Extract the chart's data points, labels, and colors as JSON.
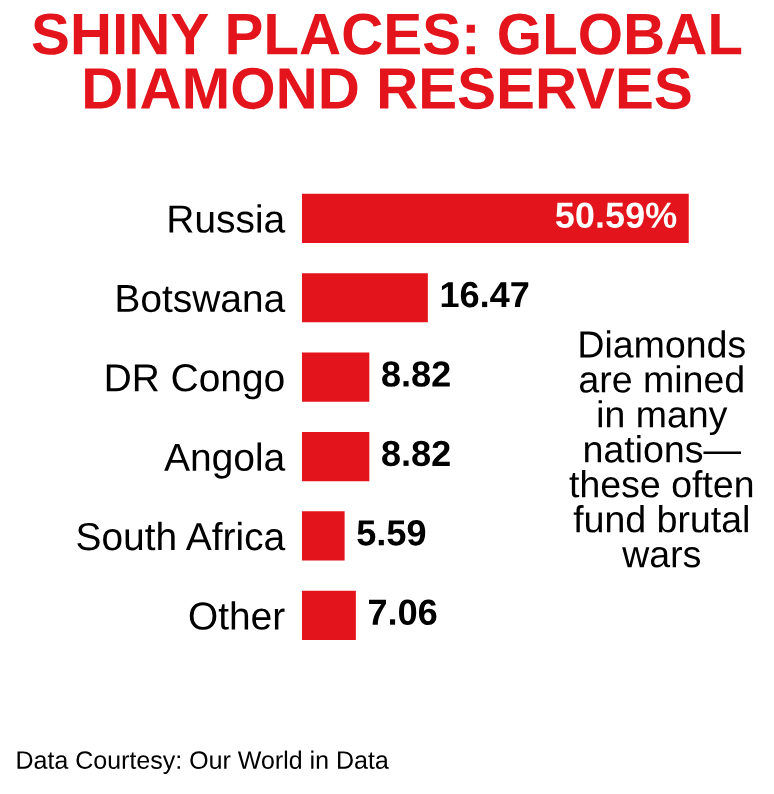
{
  "chart_data": {
    "type": "bar",
    "orientation": "horizontal",
    "title": "SHINY PLACES: GLOBAL\nDIAMOND RESERVES",
    "categories": [
      "Russia",
      "Botswana",
      "DR Congo",
      "Angola",
      "South Africa",
      "Other"
    ],
    "values": [
      50.59,
      16.47,
      8.82,
      8.82,
      5.59,
      7.06
    ],
    "value_labels": [
      "50.59%",
      "16.47",
      "8.82",
      "8.82",
      "5.59",
      "7.06"
    ],
    "color": "#e3141b",
    "grid": false,
    "legend": false,
    "annotations": [
      "Diamonds\nare mined\nin many\nnations—\nthese often\nfund brutal\nwars",
      "Data Courtesy: Our World in Data"
    ]
  }
}
